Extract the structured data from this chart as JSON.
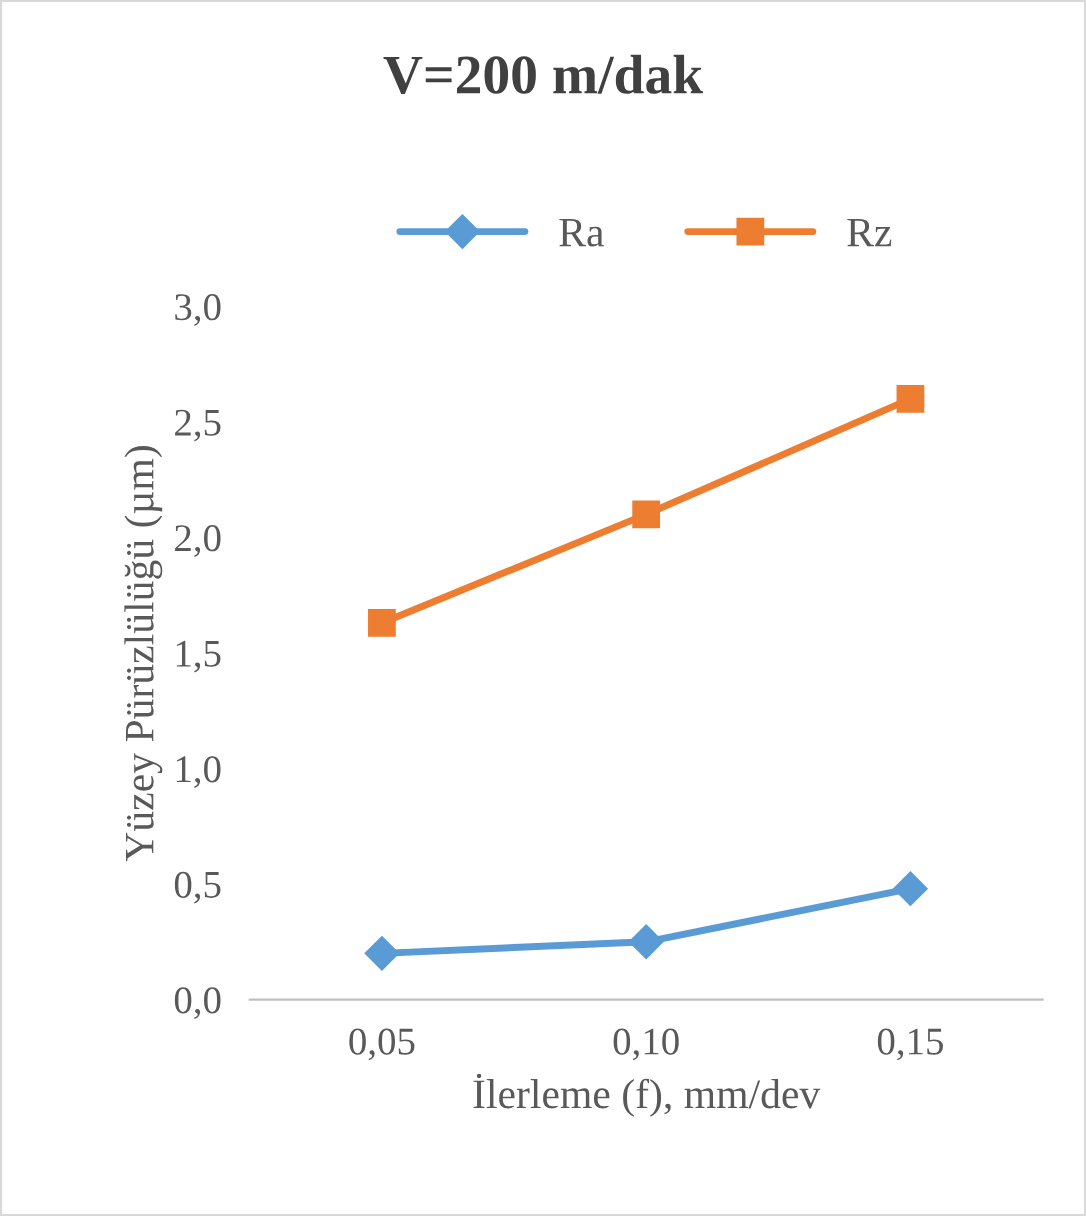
{
  "chart_data": {
    "type": "line",
    "title": "V=200 m/dak",
    "xlabel": "İlerleme (f), mm/dev",
    "ylabel": "Yüzey Pürüzlülüğü (µm)",
    "categories": [
      "0,05",
      "0,10",
      "0,15"
    ],
    "series": [
      {
        "name": "Ra",
        "color": "#5b9bd5",
        "marker": "diamond",
        "values": [
          0.2,
          0.25,
          0.48
        ]
      },
      {
        "name": "Rz",
        "color": "#ed7d31",
        "marker": "square",
        "values": [
          1.63,
          2.1,
          2.6
        ]
      }
    ],
    "ylim": [
      0,
      3
    ],
    "yticks": [
      {
        "value": 0,
        "label": "0,0"
      },
      {
        "value": 0.5,
        "label": "0,5"
      },
      {
        "value": 1,
        "label": "1,0"
      },
      {
        "value": 1.5,
        "label": "1,5"
      },
      {
        "value": 2,
        "label": "2,0"
      },
      {
        "value": 2.5,
        "label": "2,5"
      },
      {
        "value": 3,
        "label": "3,0"
      }
    ],
    "grid": false,
    "legend": "top",
    "line_style": "solid"
  }
}
